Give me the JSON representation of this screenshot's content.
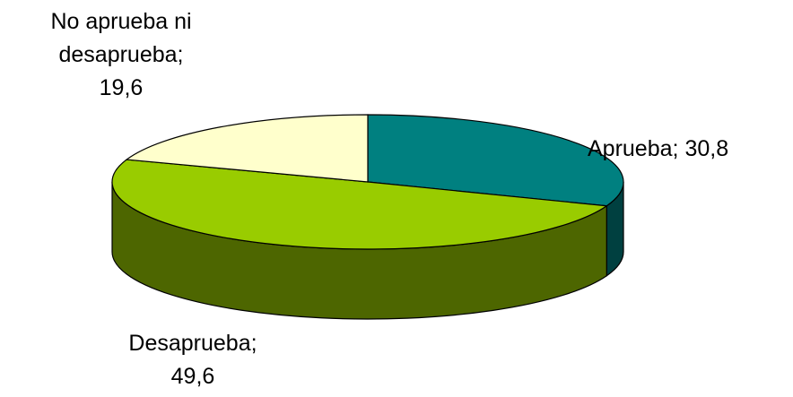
{
  "chart_data": {
    "type": "pie3d",
    "categories": [
      "Aprueba",
      "Desaprueba",
      "No aprueba ni desaprueba"
    ],
    "values": [
      30.8,
      49.6,
      19.6
    ],
    "value_labels": [
      "30,8",
      "49,6",
      "19,6"
    ],
    "label_separator": ";",
    "colors": [
      "#008080",
      "#99cc00",
      "#ffffcc"
    ]
  }
}
